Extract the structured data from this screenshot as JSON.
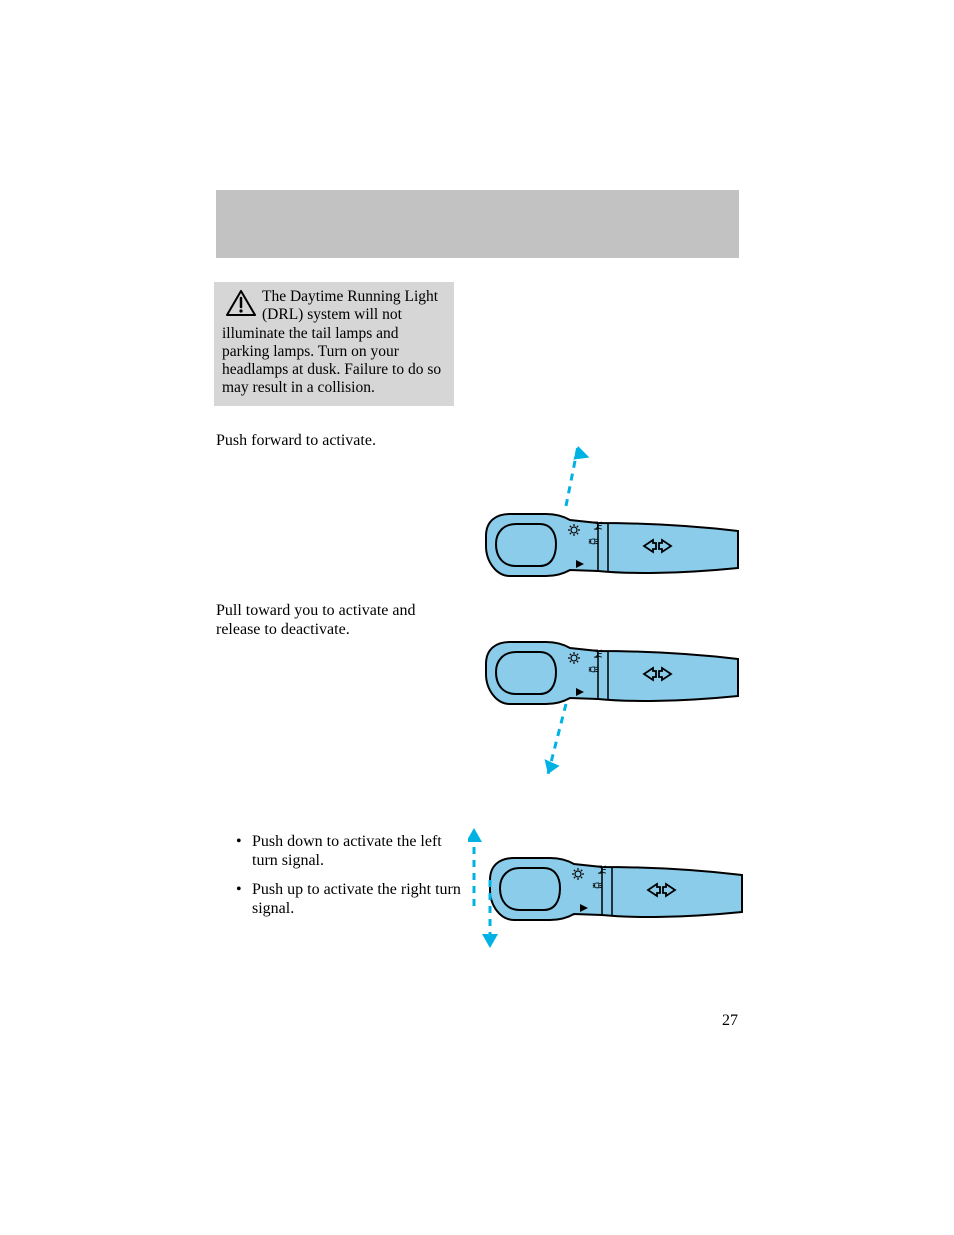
{
  "colors": {
    "header_band": "#c2c2c2",
    "warning_bg": "#d6d6d6",
    "lever_fill": "#8accea",
    "lever_stroke": "#000000",
    "arrow": "#00b2e3",
    "text": "#000000",
    "page_bg": "#ffffff"
  },
  "warning": {
    "text": "The Daytime Running Light (DRL) system will not illuminate the tail lamps and parking lamps. Turn on your headlamps at dusk. Failure to do so may result in a collision."
  },
  "section1": {
    "label": "Push forward to activate."
  },
  "section2": {
    "label": "Pull toward you to activate and release to deactivate."
  },
  "section3": {
    "item1": "Push down to activate the left turn signal.",
    "item2": "Push up to activate the right turn signal."
  },
  "page_number": "27",
  "diagram": {
    "lever_stroke_width": 2,
    "arrow_stroke_width": 3,
    "arrow_dash": "7 6"
  }
}
